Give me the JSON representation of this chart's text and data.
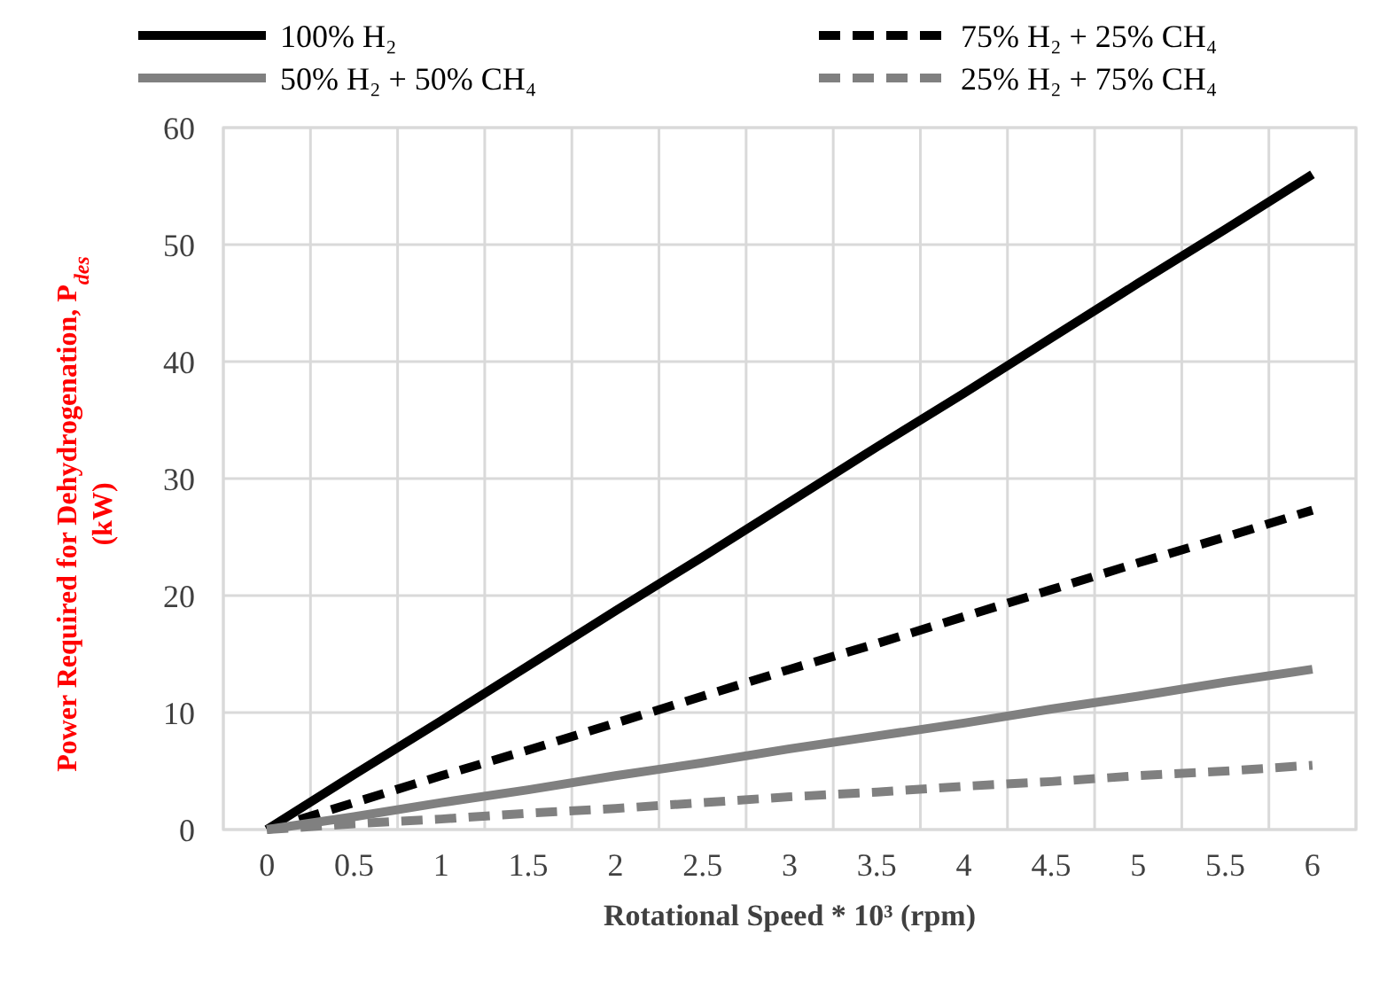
{
  "chart_data": {
    "type": "line",
    "xlabel": "Rotational Speed * 10³ (rpm)",
    "ylabel": "Power Required for Dehydrogenation, P$_{des}$ (kW)",
    "categories": [
      "0",
      "0.5",
      "1",
      "1.5",
      "2",
      "2.5",
      "3",
      "3.5",
      "4",
      "4.5",
      "5",
      "5.5",
      "6"
    ],
    "ylim": [
      0,
      60
    ],
    "yticks": [
      0,
      10,
      20,
      30,
      40,
      50,
      60
    ],
    "grid": true,
    "legend": "top",
    "series": [
      {
        "name": "100% H₂",
        "color": "#000000",
        "line_style": "solid",
        "values": [
          0,
          4.7,
          9.3,
          14,
          18.7,
          23.3,
          28,
          32.7,
          37.3,
          42,
          46.7,
          51.3,
          56
        ]
      },
      {
        "name": "75% H₂ + 25% CH₄",
        "color": "#000000",
        "line_style": "dashed",
        "values": [
          0,
          2.3,
          4.6,
          6.8,
          9.1,
          11.4,
          13.7,
          15.9,
          18.2,
          20.5,
          22.8,
          25,
          27.3
        ]
      },
      {
        "name": "50% H₂ + 50% CH₄",
        "color": "#808080",
        "line_style": "solid",
        "values": [
          0,
          1.1,
          2.3,
          3.4,
          4.6,
          5.7,
          6.9,
          8,
          9.1,
          10.3,
          11.4,
          12.6,
          13.7
        ]
      },
      {
        "name": "25% H₂ + 75% CH₄",
        "color": "#808080",
        "line_style": "dashed",
        "values": [
          0,
          0.5,
          0.9,
          1.4,
          1.8,
          2.3,
          2.8,
          3.2,
          3.7,
          4.1,
          4.6,
          5,
          5.5
        ]
      }
    ]
  }
}
